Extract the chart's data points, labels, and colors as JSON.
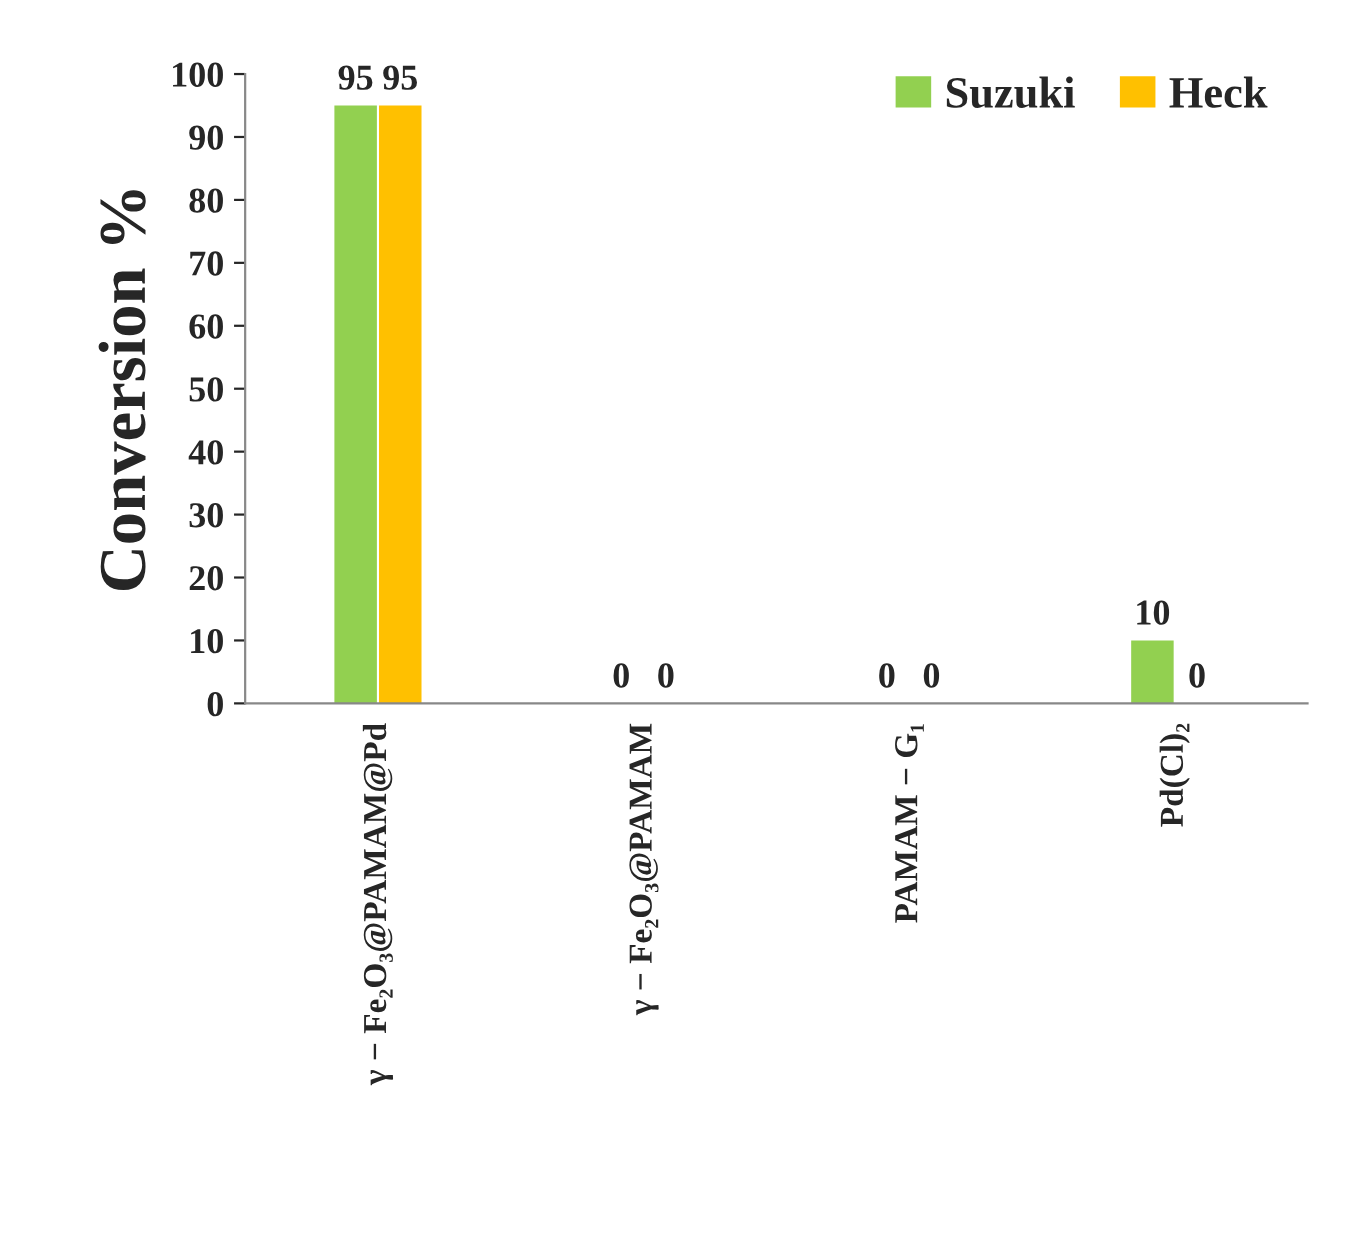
{
  "chart_data": {
    "type": "bar",
    "ylabel": "Conversion %",
    "categories": [
      "γ − Fe₂O₃@PAMAM@Pd",
      "γ − Fe₂O₃@PAMAM",
      "PAMAM − G₁",
      "Pd(Cl)₂"
    ],
    "series": [
      {
        "name": "Suzuki",
        "color": "#92d050",
        "values": [
          95,
          0,
          0,
          10
        ]
      },
      {
        "name": "Heck",
        "color": "#ffc000",
        "values": [
          95,
          0,
          0,
          0
        ]
      }
    ],
    "ylim": [
      0,
      100
    ],
    "yticks": [
      0,
      10,
      20,
      30,
      40,
      50,
      60,
      70,
      80,
      90,
      100
    ],
    "data_labels": true,
    "legend": "top right",
    "grid": false
  }
}
